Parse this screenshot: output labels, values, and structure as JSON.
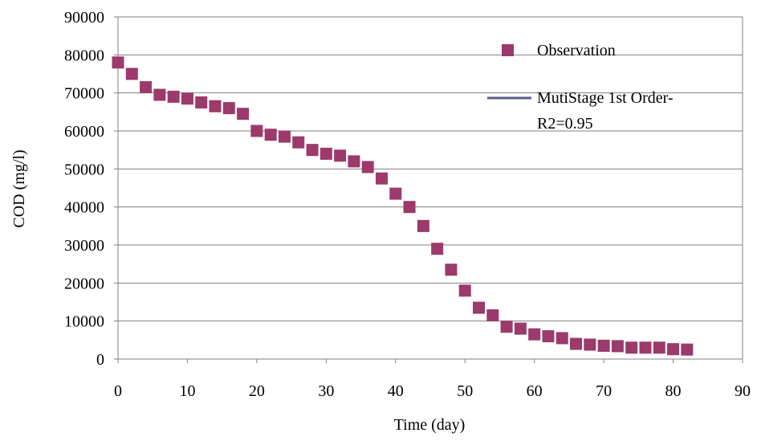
{
  "chart_data": {
    "type": "scatter",
    "title": "",
    "xlabel": "Time (day)",
    "ylabel": "COD (mg/l)",
    "xlim": [
      0,
      90
    ],
    "ylim": [
      0,
      90000
    ],
    "x_ticks": [
      0,
      10,
      20,
      30,
      40,
      50,
      60,
      70,
      80,
      90
    ],
    "y_ticks": [
      0,
      10000,
      20000,
      30000,
      40000,
      50000,
      60000,
      70000,
      80000,
      90000
    ],
    "grid": "horizontal",
    "legend_position": "top-right",
    "colors": {
      "observation": "#9b3a6b",
      "model_line": "#5b5b8c",
      "grid": "#808080",
      "axis": "#808080"
    },
    "series": [
      {
        "name": "Observation",
        "marker": "square",
        "points": [
          {
            "x": 0,
            "y": 78000
          },
          {
            "x": 2,
            "y": 75000
          },
          {
            "x": 4,
            "y": 71500
          },
          {
            "x": 6,
            "y": 69500
          },
          {
            "x": 8,
            "y": 69000
          },
          {
            "x": 10,
            "y": 68500
          },
          {
            "x": 12,
            "y": 67500
          },
          {
            "x": 14,
            "y": 66500
          },
          {
            "x": 16,
            "y": 66000
          },
          {
            "x": 18,
            "y": 64500
          },
          {
            "x": 20,
            "y": 60000
          },
          {
            "x": 22,
            "y": 59000
          },
          {
            "x": 24,
            "y": 58500
          },
          {
            "x": 26,
            "y": 57000
          },
          {
            "x": 28,
            "y": 55000
          },
          {
            "x": 30,
            "y": 54000
          },
          {
            "x": 32,
            "y": 53500
          },
          {
            "x": 34,
            "y": 52000
          },
          {
            "x": 36,
            "y": 50500
          },
          {
            "x": 38,
            "y": 47500
          },
          {
            "x": 40,
            "y": 43500
          },
          {
            "x": 42,
            "y": 40000
          },
          {
            "x": 44,
            "y": 35000
          },
          {
            "x": 46,
            "y": 29000
          },
          {
            "x": 48,
            "y": 23500
          },
          {
            "x": 50,
            "y": 18000
          },
          {
            "x": 52,
            "y": 13500
          },
          {
            "x": 54,
            "y": 11500
          },
          {
            "x": 56,
            "y": 8500
          },
          {
            "x": 58,
            "y": 8000
          },
          {
            "x": 60,
            "y": 6500
          },
          {
            "x": 62,
            "y": 6000
          },
          {
            "x": 64,
            "y": 5500
          },
          {
            "x": 66,
            "y": 4000
          },
          {
            "x": 68,
            "y": 3800
          },
          {
            "x": 70,
            "y": 3500
          },
          {
            "x": 72,
            "y": 3400
          },
          {
            "x": 74,
            "y": 3000
          },
          {
            "x": 76,
            "y": 3000
          },
          {
            "x": 78,
            "y": 3000
          },
          {
            "x": 80,
            "y": 2600
          },
          {
            "x": 82,
            "y": 2500
          }
        ]
      },
      {
        "name": "MutiStage 1st Order-",
        "name_line2": "R2=0.95",
        "marker": "line",
        "points": []
      }
    ]
  }
}
